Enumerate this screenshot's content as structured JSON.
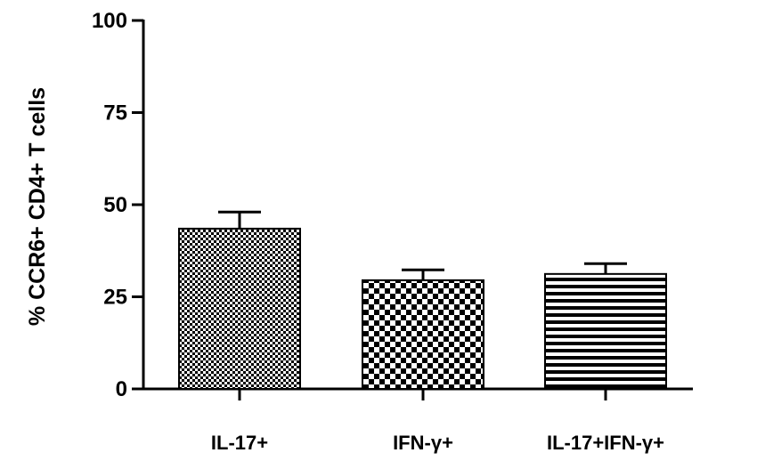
{
  "chart_data": {
    "type": "bar",
    "title": "",
    "xlabel": "",
    "ylabel": "% CCR6+ CD4+ T cells",
    "categories": [
      "IL-17+",
      "IFN-γ+",
      "IL-17+IFN-γ+"
    ],
    "values": [
      43.5,
      29.5,
      31.2
    ],
    "errors": [
      4.5,
      2.8,
      2.8
    ],
    "ylim": [
      0,
      100
    ],
    "yticks": [
      0,
      25,
      50,
      75,
      100
    ],
    "ytick_labels": [
      "0",
      "25",
      "50",
      "75",
      "100"
    ],
    "grid": false,
    "legend": "none",
    "bar_fills": [
      "fine-checker",
      "coarse-checker",
      "horizontal-stripes"
    ],
    "colors": {
      "ink": "#000000",
      "background": "#ffffff"
    }
  }
}
